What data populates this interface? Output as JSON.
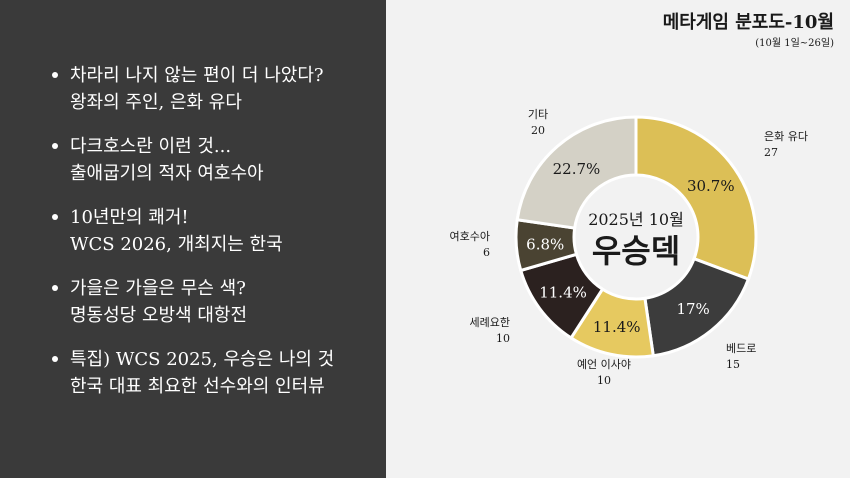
{
  "left": {
    "bullets": [
      {
        "line1": "차라리 나지 않는 편이 더 나았다?",
        "line2": "왕좌의 주인, 은화 유다"
      },
      {
        "line1": "다크호스란 이런 것...",
        "line2": "출애굽기의 적자 여호수아"
      },
      {
        "line1": "10년만의 쾌거!",
        "line2": "WCS 2026, 개최지는 한국"
      },
      {
        "line1": "가을은 가을은 무슨 색?",
        "line2": "명동성당 오방색 대항전"
      },
      {
        "line1": "특집) WCS 2025, 우승은 나의 것",
        "line2": "한국 대표 최요한 선수와의 인터뷰"
      }
    ]
  },
  "right": {
    "title": "메타게임 분포도-10월",
    "subtitle": "(10월 1일~26일)"
  },
  "chart_data": {
    "type": "pie",
    "variant": "donut",
    "center_line1": "2025년 10월",
    "center_line2": "우승덱",
    "slices": [
      {
        "label": "은화 유다",
        "count": "27",
        "percent_label": "30.7%",
        "value": 30.7,
        "color": "#dcbf56",
        "text_color": "#1a1a1a"
      },
      {
        "label": "베드로",
        "count": "15",
        "percent_label": "17%",
        "value": 17.0,
        "color": "#3c3c3c",
        "text_color": "#ffffff"
      },
      {
        "label": "예언 이사야",
        "count": "10",
        "percent_label": "11.4%",
        "value": 11.4,
        "color": "#e6c960",
        "text_color": "#1a1a1a"
      },
      {
        "label": "세례요한",
        "count": "10",
        "percent_label": "11.4%",
        "value": 11.4,
        "color": "#2b211f",
        "text_color": "#ffffff"
      },
      {
        "label": "여호수아",
        "count": "6",
        "percent_label": "6.8%",
        "value": 6.8,
        "color": "#4a4332",
        "text_color": "#ffffff"
      },
      {
        "label": "기타",
        "count": "20",
        "percent_label": "22.7%",
        "value": 22.7,
        "color": "#d4d1c6",
        "text_color": "#1a1a1a"
      }
    ]
  }
}
